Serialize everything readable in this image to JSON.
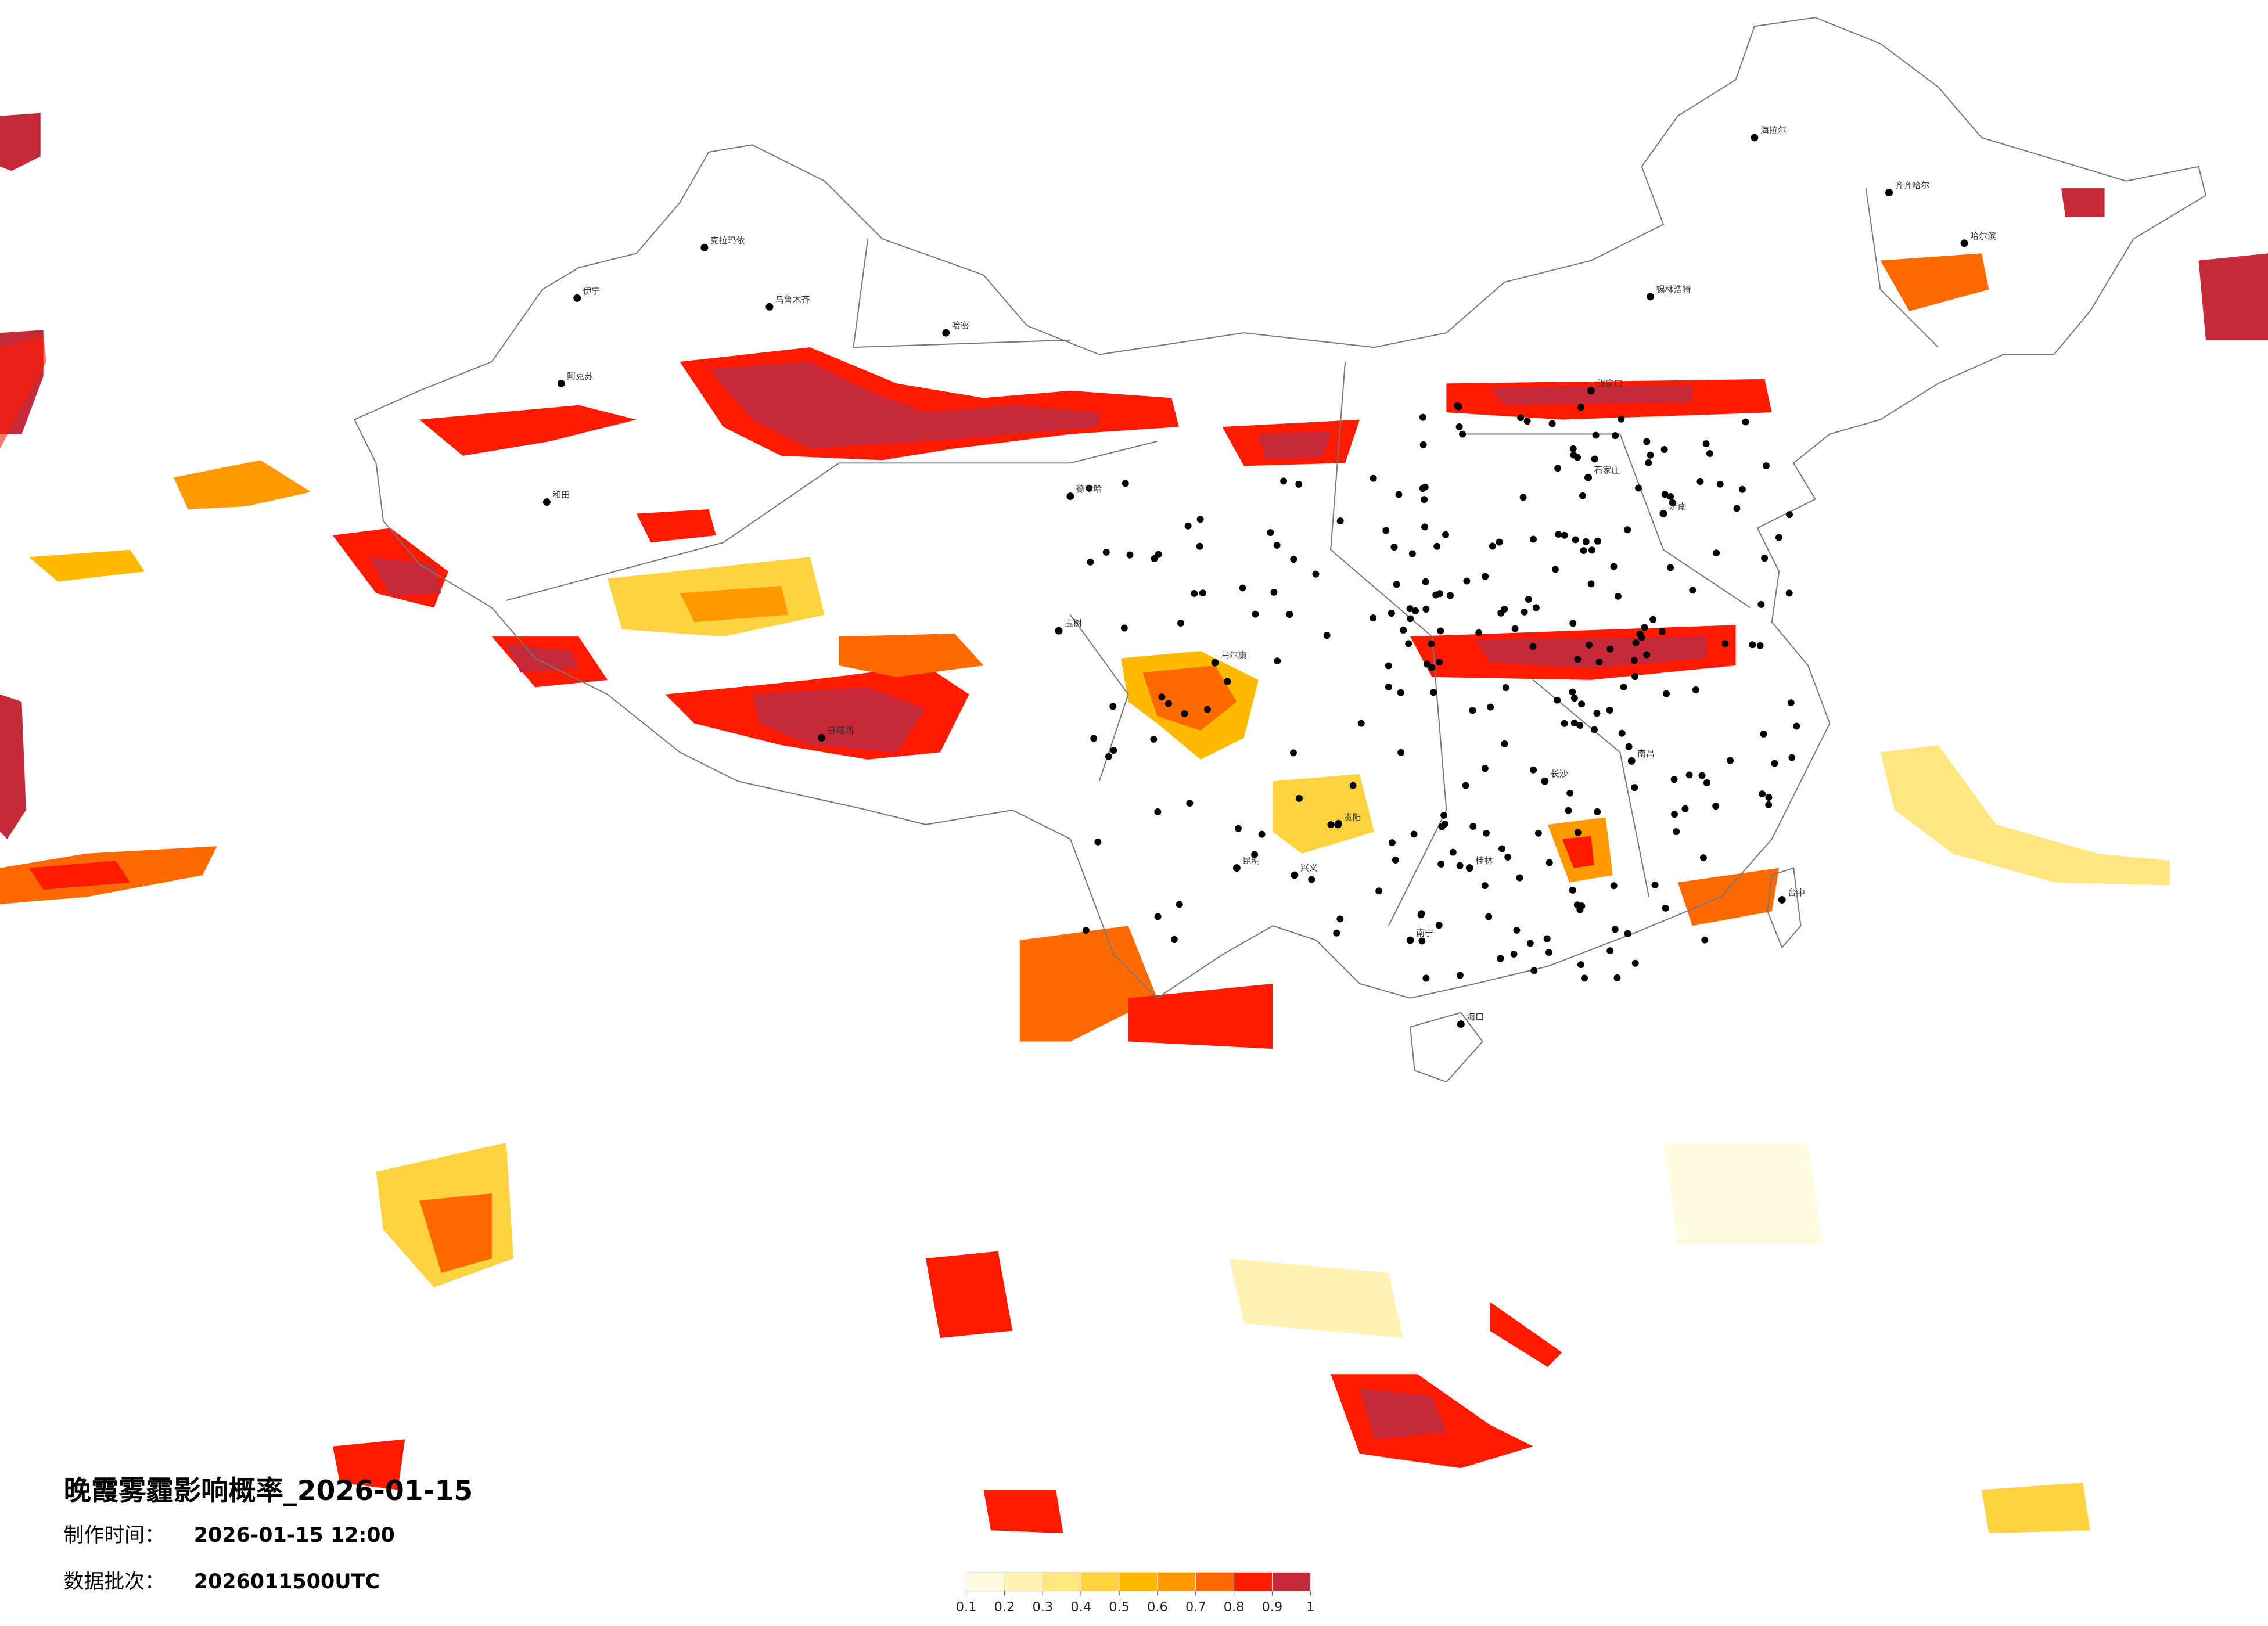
{
  "title": "晚霞雾霾影响概率_2026-01-15",
  "info": [
    {
      "label": "制作时间：",
      "value": "2026-01-15 12:00"
    },
    {
      "label": "数据批次：",
      "value": "2026011500UTC"
    }
  ],
  "colorbar": {
    "ticks": [
      0.1,
      0.2,
      0.3,
      0.4,
      0.5,
      0.6,
      0.7,
      0.8,
      0.9,
      1
    ],
    "colors": [
      "#fffbe0",
      "#fff3b3",
      "#ffe680",
      "#ffd23f",
      "#ffba00",
      "#ff9900",
      "#ff6a00",
      "#ff1a00",
      "#c62a3a"
    ]
  },
  "cities": [
    "海拉尔",
    "齐齐哈尔",
    "哈尔滨",
    "锡林浩特",
    "克拉玛依",
    "伊宁",
    "和田",
    "德令哈",
    "玉树",
    "张家口",
    "石家庄",
    "南昌",
    "长沙",
    "桂林",
    "昆明",
    "海口",
    "台中",
    "阿克苏",
    "乌鲁木齐",
    "哈密",
    "马尔康",
    "日喀则",
    "济南",
    "南宁",
    "贵阳",
    "兴义"
  ]
}
